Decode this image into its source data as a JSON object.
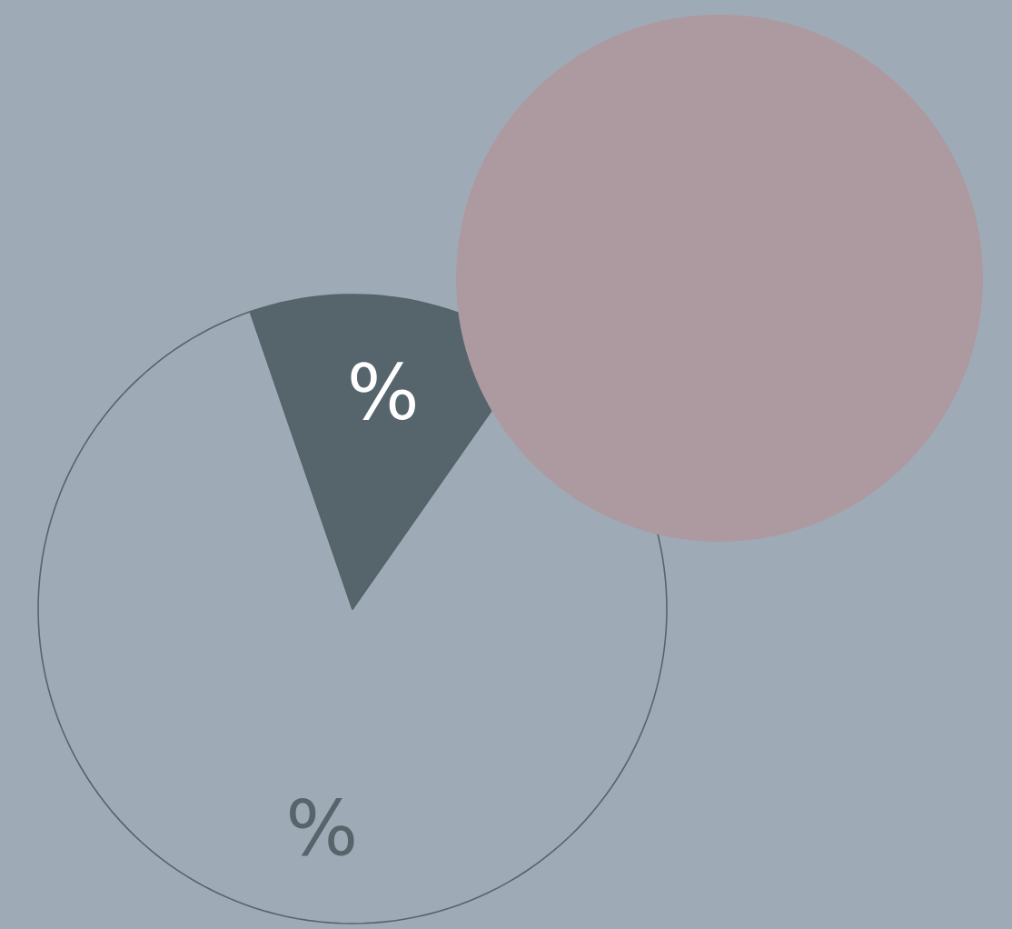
{
  "chart_data": {
    "type": "pie",
    "categories": [
      null,
      null
    ],
    "values": [
      15,
      85
    ],
    "colors": [
      "#56646b",
      "#9eabb7"
    ],
    "value_labels": [
      "%",
      "%"
    ]
  }
}
